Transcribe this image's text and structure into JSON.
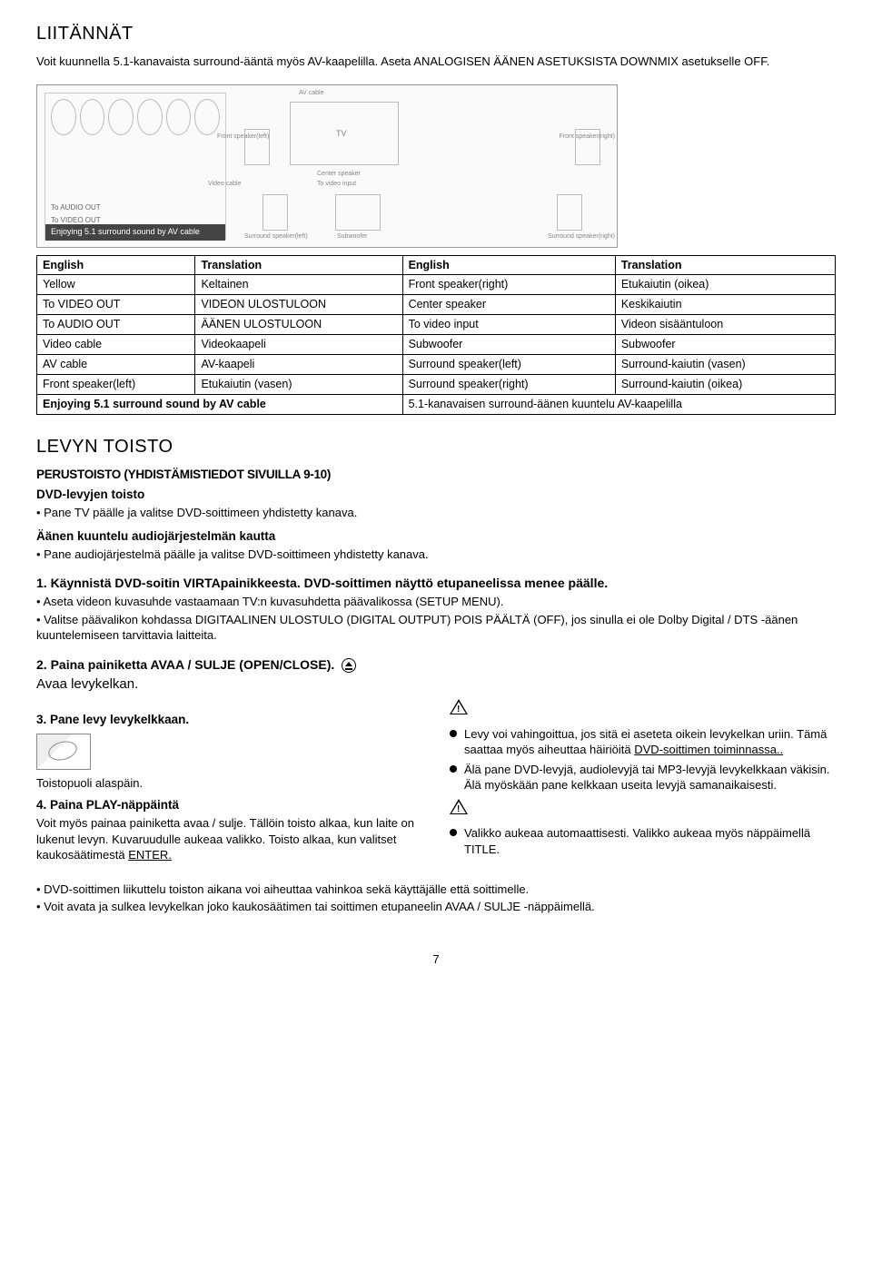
{
  "title": "LIITÄNNÄT",
  "intro": "Voit kuunnella 5.1-kanavaista surround-ääntä myös AV-kaapelilla. Aseta ANALOGISEN ÄÄNEN ASETUKSISTA DOWNMIX asetukselle OFF.",
  "diagram": {
    "enjoy": "Enjoying 5.1 surround sound by AV cable",
    "to_audio_out": "To AUDIO OUT",
    "to_video_out": "To VIDEO OUT",
    "av_cable": "AV cable",
    "video_cable": "Video cable",
    "front_l": "Front speaker(left)",
    "front_r": "Front speaker(right)",
    "center": "Center speaker",
    "to_video_in": "To video input",
    "subwoofer": "Subwoofer",
    "sur_l": "Surround speaker(left)",
    "sur_r": "Surround speaker(right)",
    "yellow": "Yellow"
  },
  "table": {
    "headers": [
      "English",
      "Translation",
      "English",
      "Translation"
    ],
    "rows": [
      [
        "Yellow",
        "Keltainen",
        "Front speaker(right)",
        "Etukaiutin (oikea)"
      ],
      [
        "To VIDEO OUT",
        "VIDEON ULOSTULOON",
        "Center speaker",
        "Keskikaiutin"
      ],
      [
        "To AUDIO OUT",
        "ÄÄNEN ULOSTULOON",
        "To video input",
        "Videon sisääntuloon"
      ],
      [
        "Video cable",
        "Videokaapeli",
        "Subwoofer",
        "Subwoofer"
      ],
      [
        "AV cable",
        "AV-kaapeli",
        "Surround speaker(left)",
        "Surround-kaiutin (vasen)"
      ],
      [
        "Front speaker(left)",
        "Etukaiutin (vasen)",
        "Surround speaker(right)",
        "Surround-kaiutin (oikea)"
      ]
    ],
    "last_row": [
      "Enjoying 5.1 surround sound by AV cable",
      "5.1-kanavaisen surround-äänen kuuntelu AV-kaapelilla"
    ]
  },
  "levyn_title": "LEVYN TOISTO",
  "perus_heading": "PERUSTOISTO (YHDISTÄMISTIEDOT SIVUILLA 9-10)",
  "dvd_levyjen": "DVD-levyjen toisto",
  "pane_tv": "Pane TV päälle ja valitse DVD-soittimeen yhdistetty kanava.",
  "aanen_heading": "Äänen kuuntelu audiojärjestelmän kautta",
  "pane_audio": "Pane audiojärjestelmä päälle ja valitse DVD-soittimeen yhdistetty kanava.",
  "step1_heading": "1. Käynnistä DVD-soitin VIRTApainikkeesta. DVD-soittimen näyttö etupaneelissa menee päälle.",
  "step1_b1": "Aseta videon kuvasuhde vastaamaan TV:n kuvasuhdetta päävalikossa (SETUP MENU).",
  "step1_b2": "Valitse päävalikon kohdassa DIGITAALINEN ULOSTULO (DIGITAL OUTPUT) POIS PÄÄLTÄ (OFF), jos sinulla ei ole Dolby Digital / DTS -äänen kuuntelemiseen tarvittavia laitteita.",
  "step2_heading": "2. Paina painiketta AVAA / SULJE (OPEN/CLOSE).",
  "step2_text": "Avaa levykelkan.",
  "step3_heading": "3. Pane levy levykelkkaan.",
  "step3_caption": "Toistopuoli alaspäin.",
  "step4_heading": "4. Paina PLAY-näppäintä",
  "step4_text1": "Voit myös painaa painiketta avaa / sulje. Tällöin toisto alkaa, kun laite on lukenut levyn. Kuvaruudulle aukeaa valikko. Toisto alkaa, kun valitset kaukosäätimestä",
  "step4_enter": "ENTER.",
  "warn1_a": "Levy voi vahingoittua, jos sitä ei aseteta oikein levykelkan uriin. Tämä saattaa myös aiheuttaa häiriöitä",
  "warn1_b": "DVD-soittimen toiminnassa..",
  "warn2": "Älä pane DVD-levyjä, audiolevyjä tai MP3-levyjä levykelkkaan väkisin. Älä myöskään pane kelkkaan useita levyjä samanaikaisesti.",
  "warn3": "Valikko aukeaa automaattisesti. Valikko aukeaa myös näppäimellä TITLE.",
  "bottom_b1": "DVD-soittimen liikuttelu toiston aikana voi aiheuttaa vahinkoa sekä käyttäjälle että soittimelle.",
  "bottom_b2": "Voit avata ja sulkea levykelkan joko kaukosäätimen tai soittimen etupaneelin AVAA / SULJE -näppäimellä.",
  "page_num": "7"
}
